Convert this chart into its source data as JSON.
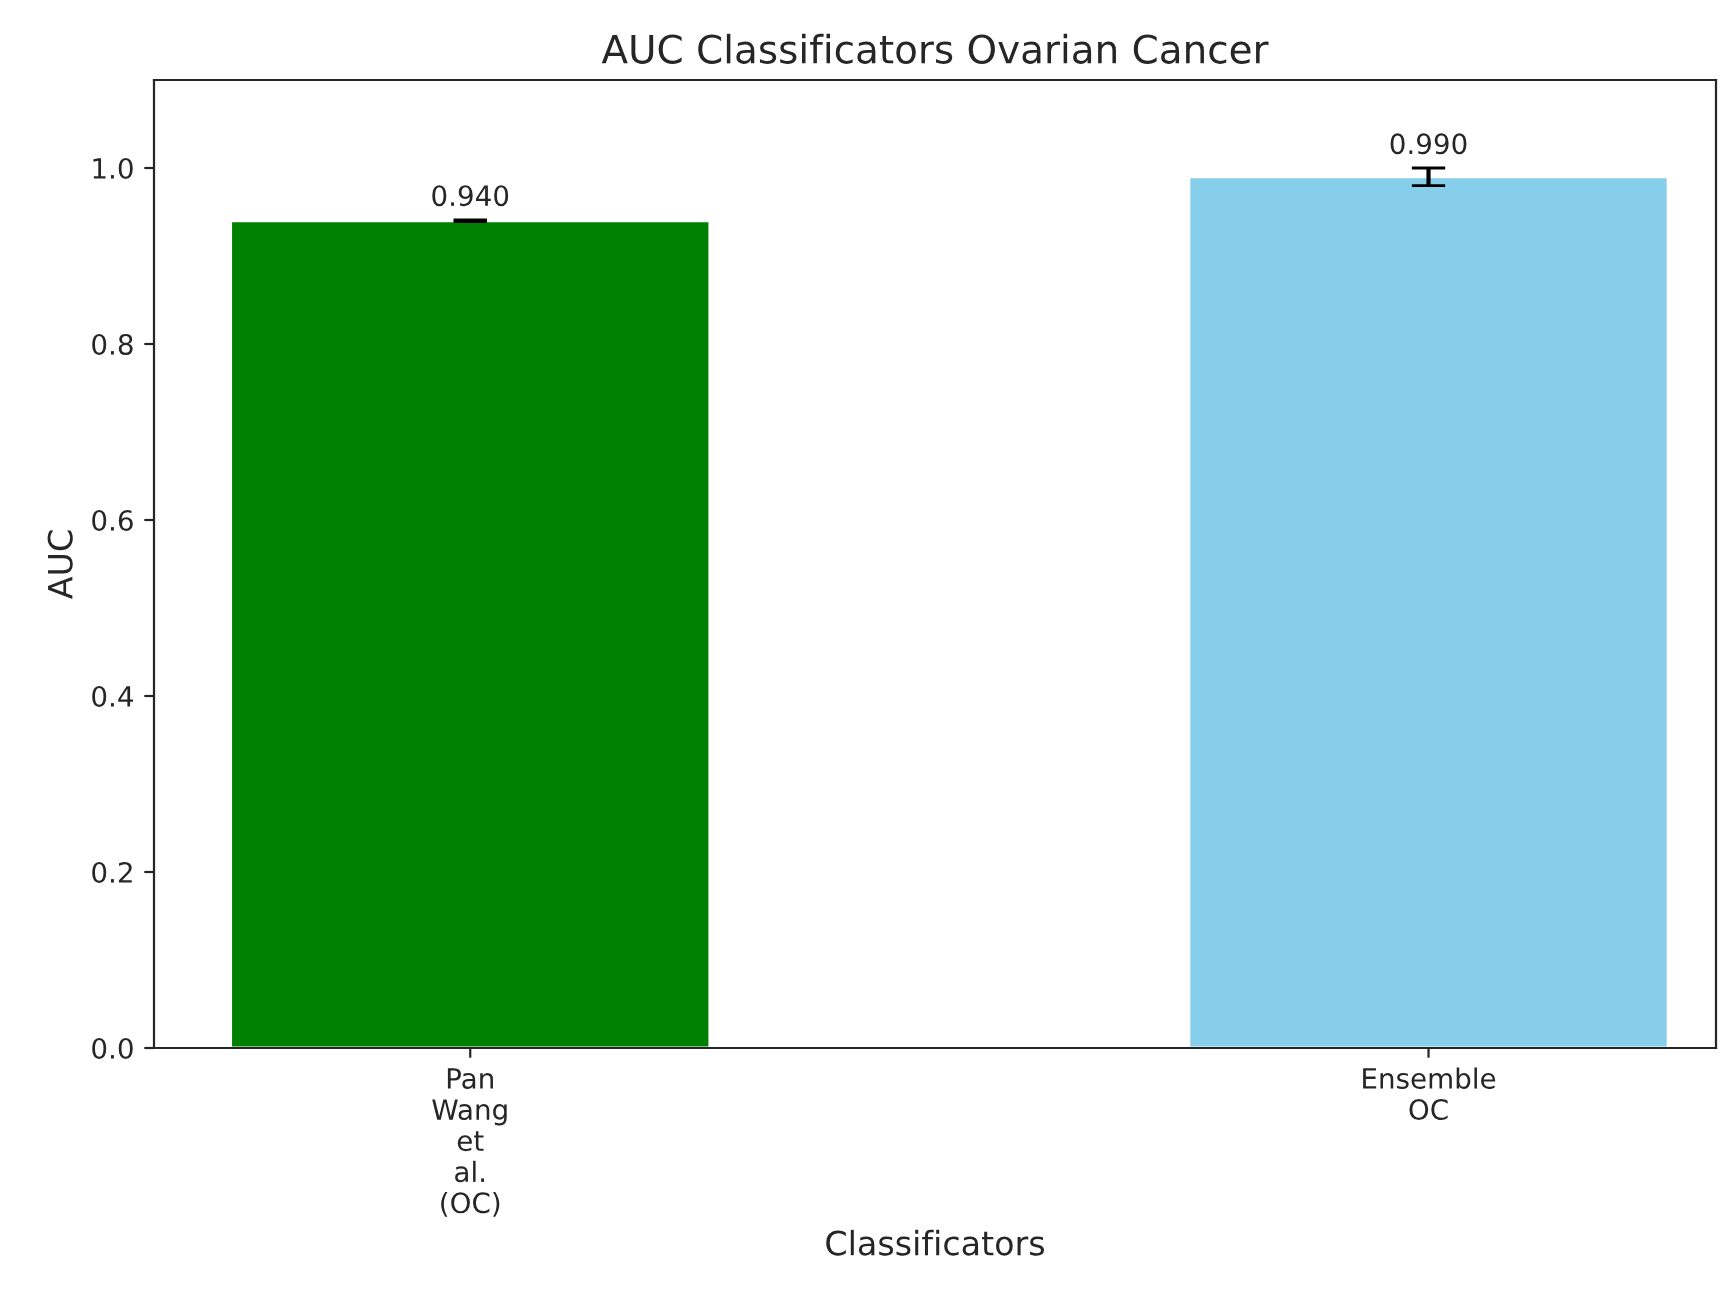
{
  "chart_data": {
    "type": "bar",
    "title": "AUC Classificators Ovarian Cancer",
    "xlabel": "Classificators",
    "ylabel": "AUC",
    "categories": [
      "Pan\nWang\net\nal.\n(OC)",
      "Ensemble\nOC"
    ],
    "values": [
      0.94,
      0.99
    ],
    "colors": [
      "#008000",
      "#87ceeb"
    ],
    "errors": [
      0.001,
      0.01
    ],
    "value_labels": [
      "0.940",
      "0.990"
    ],
    "ylim": [
      0,
      1.1
    ],
    "yticks": [
      {
        "value": 0,
        "label": "0.0"
      },
      0.2,
      0.4,
      0.6,
      0.8,
      {
        "value": 1,
        "label": "1.0"
      }
    ],
    "grid": false,
    "legend": false
  }
}
